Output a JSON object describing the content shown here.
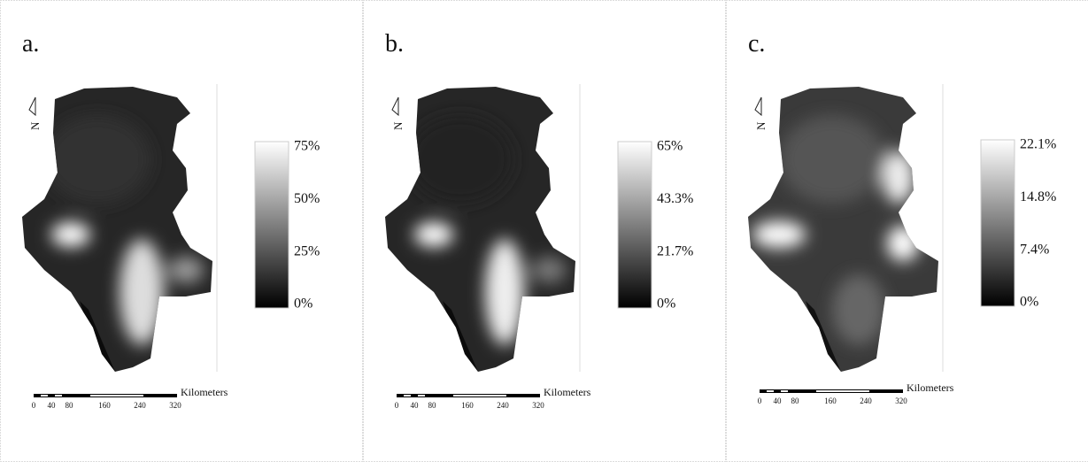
{
  "panels": [
    {
      "label": "a.",
      "north": "N",
      "legend": [
        "75%",
        "50%",
        "25%",
        "0%"
      ],
      "scale": {
        "title": "Kilometers",
        "ticks": [
          "0",
          "40",
          "80",
          "160",
          "240",
          "320"
        ]
      }
    },
    {
      "label": "b.",
      "north": "N",
      "legend": [
        "65%",
        "43.3%",
        "21.7%",
        "0%"
      ],
      "scale": {
        "title": "Kilometers",
        "ticks": [
          "0",
          "40",
          "80",
          "160",
          "240",
          "320"
        ]
      }
    },
    {
      "label": "c.",
      "north": "N",
      "legend": [
        "22.1%",
        "14.8%",
        "7.4%",
        "0%"
      ],
      "scale": {
        "title": "Kilometers",
        "ticks": [
          "0",
          "40",
          "80",
          "160",
          "240",
          "320"
        ]
      }
    }
  ]
}
